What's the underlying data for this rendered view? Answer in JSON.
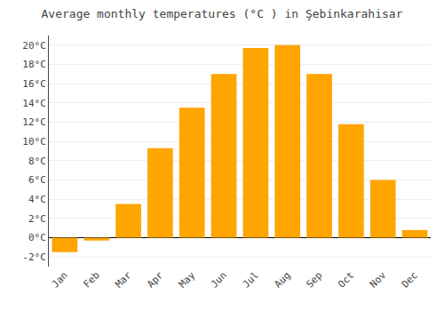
{
  "chart_data": {
    "type": "bar",
    "title": "Average monthly temperatures (°C ) in Şebinkarahisar",
    "categories": [
      "Jan",
      "Feb",
      "Mar",
      "Apr",
      "May",
      "Jun",
      "Jul",
      "Aug",
      "Sep",
      "Oct",
      "Nov",
      "Dec"
    ],
    "values": [
      -1.5,
      -0.3,
      3.5,
      9.3,
      13.5,
      17.0,
      19.7,
      20.0,
      17.0,
      11.8,
      6.0,
      0.8
    ],
    "color": "#FFA500",
    "ylim": [
      -3,
      21
    ],
    "yticks": [
      {
        "value": -2,
        "label": "-2°C"
      },
      {
        "value": 0,
        "label": "0°C"
      },
      {
        "value": 2,
        "label": "2°C"
      },
      {
        "value": 4,
        "label": "4°C"
      },
      {
        "value": 6,
        "label": "6°C"
      },
      {
        "value": 8,
        "label": "8°C"
      },
      {
        "value": 10,
        "label": "10°C"
      },
      {
        "value": 12,
        "label": "12°C"
      },
      {
        "value": 14,
        "label": "14°C"
      },
      {
        "value": 16,
        "label": "16°C"
      },
      {
        "value": 18,
        "label": "18°C"
      },
      {
        "value": 20,
        "label": "20°C"
      }
    ],
    "grid": true
  }
}
